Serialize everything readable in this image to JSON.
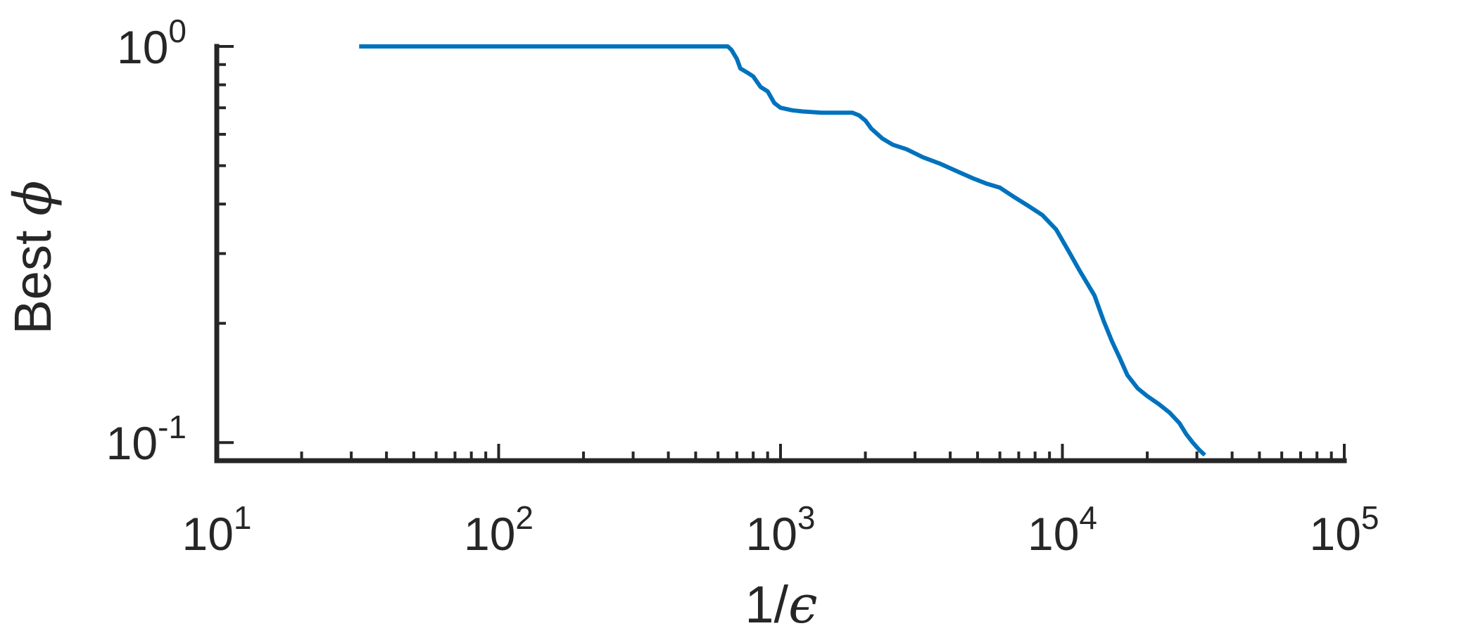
{
  "chart_data": {
    "type": "line",
    "xscale": "log",
    "yscale": "log",
    "xlim": [
      10,
      100000
    ],
    "ylim": [
      0.09,
      1
    ],
    "x_ticks": [
      {
        "base": "10",
        "exp": "1",
        "value": 10
      },
      {
        "base": "10",
        "exp": "2",
        "value": 100
      },
      {
        "base": "10",
        "exp": "3",
        "value": 1000
      },
      {
        "base": "10",
        "exp": "4",
        "value": 10000
      },
      {
        "base": "10",
        "exp": "5",
        "value": 100000
      }
    ],
    "y_ticks": [
      {
        "base": "10",
        "exp": "0",
        "value": 1
      },
      {
        "base": "10",
        "exp": "-1",
        "value": 0.1
      }
    ],
    "xlabel": {
      "text": "1/",
      "symbol": "ϵ"
    },
    "ylabel": {
      "text": "Best ",
      "symbol": "ϕ"
    },
    "grid": false,
    "line_color": "#0072BD",
    "axis_color": "#262626",
    "series": [
      {
        "x": [
          32,
          100,
          300,
          650,
          670,
          700,
          720,
          760,
          800,
          850,
          900,
          950,
          1000,
          1100,
          1200,
          1400,
          1600,
          1800,
          1900,
          2000,
          2100,
          2300,
          2500,
          2800,
          3200,
          3700,
          4200,
          4800,
          5400,
          6000,
          6800,
          7600,
          8500,
          9500,
          10500,
          11500,
          13000,
          14000,
          15000,
          16000,
          17000,
          18500,
          20000,
          22000,
          24000,
          26000,
          27500,
          29000,
          30500,
          32000
        ],
        "y": [
          1.0,
          1.0,
          1.0,
          1.0,
          0.98,
          0.93,
          0.88,
          0.86,
          0.84,
          0.79,
          0.77,
          0.72,
          0.7,
          0.69,
          0.685,
          0.68,
          0.68,
          0.68,
          0.67,
          0.65,
          0.62,
          0.585,
          0.565,
          0.55,
          0.525,
          0.505,
          0.485,
          0.465,
          0.45,
          0.44,
          0.415,
          0.395,
          0.375,
          0.345,
          0.305,
          0.272,
          0.235,
          0.203,
          0.18,
          0.163,
          0.148,
          0.137,
          0.131,
          0.125,
          0.119,
          0.112,
          0.105,
          0.1,
          0.096,
          0.093
        ]
      }
    ]
  }
}
